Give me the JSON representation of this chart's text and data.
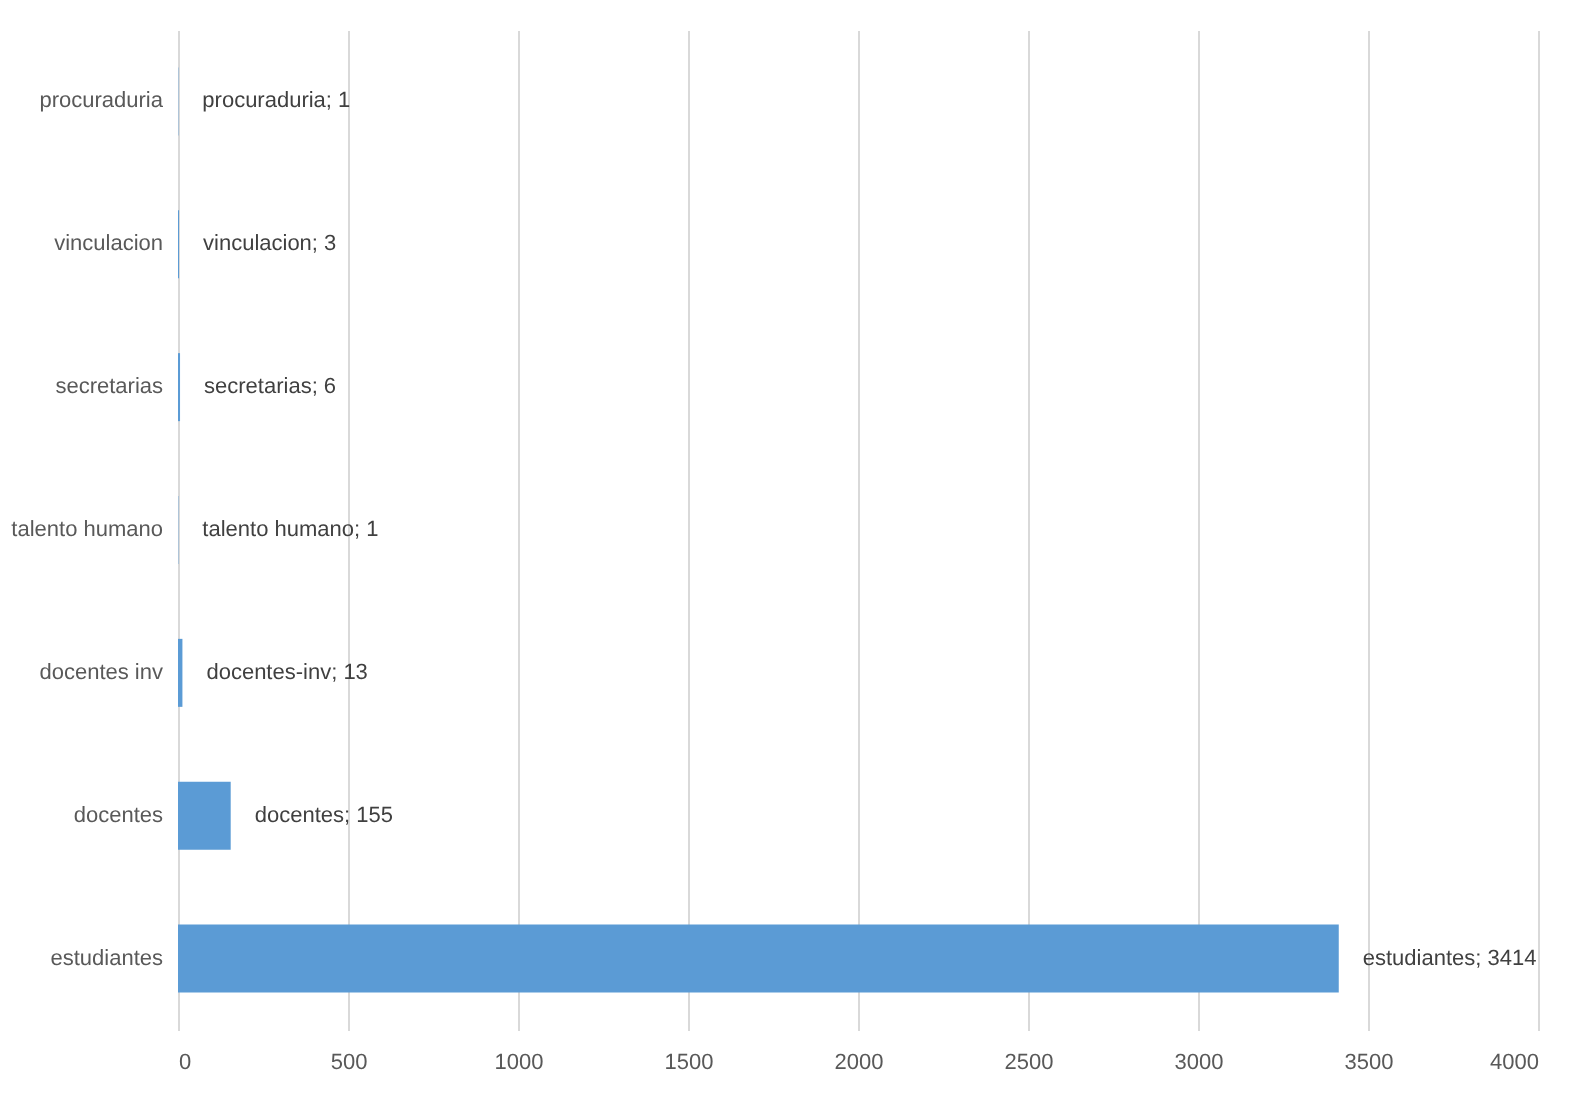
{
  "chart_data": {
    "type": "bar",
    "orientation": "horizontal",
    "categories": [
      "procuraduria",
      "vinculacion",
      "secretarias",
      "talento humano",
      "docentes inv",
      "docentes",
      "estudiantes"
    ],
    "values": [
      1,
      3,
      6,
      1,
      13,
      155,
      3414
    ],
    "value_labels": [
      "procuraduria; 1",
      "vinculacion; 3",
      "secretarias; 6",
      "talento humano; 1",
      "docentes-inv; 13",
      "docentes; 155",
      "estudiantes; 3414"
    ],
    "color": "#5b9bd5",
    "xlim": [
      0,
      4000
    ],
    "xticks": [
      0,
      500,
      1000,
      1500,
      2000,
      2500,
      3000,
      3500,
      4000
    ],
    "grid": "x"
  }
}
